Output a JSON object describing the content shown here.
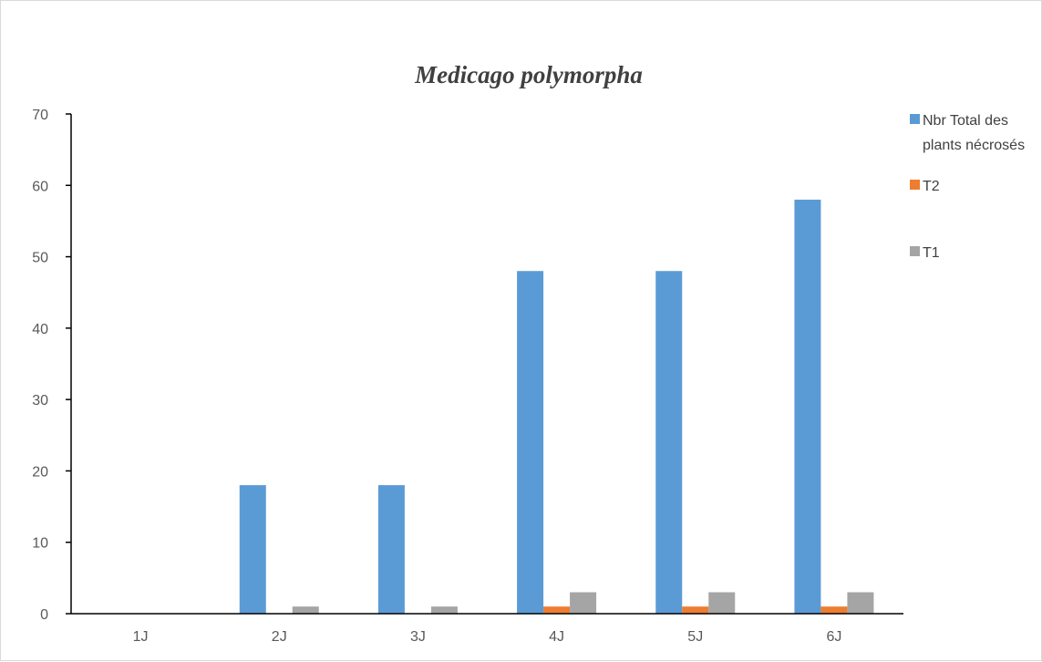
{
  "chart_data": {
    "type": "bar",
    "title": "Medicago polymorpha",
    "xlabel": "",
    "ylabel": "",
    "categories": [
      "1J",
      "2J",
      "3J",
      "4J",
      "5J",
      "6J"
    ],
    "series": [
      {
        "name": "Nbr Total des plants nécrosés",
        "values": [
          0,
          18,
          18,
          48,
          48,
          58
        ],
        "color": "#5b9bd5"
      },
      {
        "name": "T2",
        "values": [
          0,
          0,
          0,
          1,
          1,
          1
        ],
        "color": "#ed7d31"
      },
      {
        "name": "T1",
        "values": [
          0,
          1,
          1,
          3,
          3,
          3
        ],
        "color": "#a5a5a5"
      }
    ],
    "ylim": [
      0,
      70
    ],
    "yticks": [
      0,
      10,
      20,
      30,
      40,
      50,
      60,
      70
    ],
    "grid": false,
    "legend": "top-right",
    "legend_lines": [
      [
        "Nbr Total des",
        "plants nécrosés"
      ],
      [
        "T2"
      ],
      [
        "T1"
      ]
    ]
  }
}
